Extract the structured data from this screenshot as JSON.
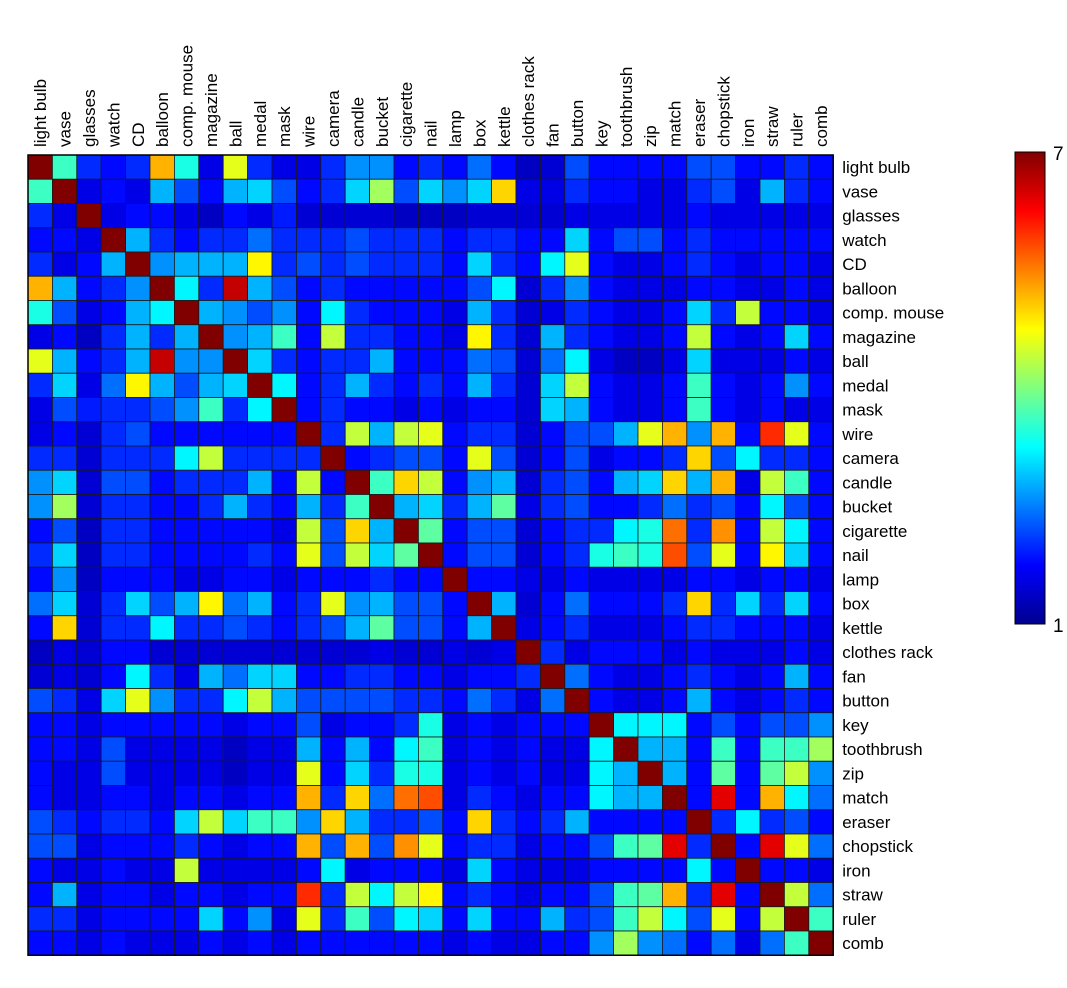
{
  "chart_data": {
    "type": "heatmap",
    "title": "",
    "xlabel": "",
    "ylabel": "",
    "categories": [
      "light bulb",
      "vase",
      "glasses",
      "watch",
      "CD",
      "balloon",
      "comp. mouse",
      "magazine",
      "ball",
      "medal",
      "mask",
      "wire",
      "camera",
      "candle",
      "bucket",
      "cigarette",
      "nail",
      "lamp",
      "box",
      "kettle",
      "clothes rack",
      "fan",
      "button",
      "key",
      "toothbrush",
      "zip",
      "match",
      "eraser",
      "chopstick",
      "iron",
      "straw",
      "ruler",
      "comb"
    ],
    "x_tick_position": "top",
    "y_tick_position": "right",
    "colormap": "jet",
    "colorbar": {
      "min": 1,
      "max": 7,
      "min_label": "1",
      "max_label": "7",
      "placement": "right"
    },
    "matrix": [
      [
        7,
        3.6,
        2,
        1.8,
        2,
        5.2,
        3.4,
        1.6,
        4.6,
        2,
        1.6,
        1.6,
        2,
        2.6,
        2.6,
        1.8,
        2,
        1.8,
        2.4,
        1.8,
        1.4,
        1.5,
        2.2,
        1.8,
        1.8,
        1.8,
        1.8,
        2.2,
        2.2,
        1.8,
        1.8,
        2,
        1.8
      ],
      [
        3.6,
        7,
        1.6,
        1.8,
        1.6,
        2.8,
        2.2,
        1.8,
        2.8,
        3,
        2.2,
        1.8,
        2,
        3,
        4.2,
        2.2,
        3,
        2.6,
        3,
        5,
        1.6,
        1.6,
        2,
        1.8,
        1.8,
        1.6,
        1.6,
        2,
        2.2,
        1.6,
        2.8,
        2,
        1.8
      ],
      [
        2,
        1.6,
        7,
        1.6,
        1.8,
        1.8,
        1.6,
        1.4,
        1.8,
        1.6,
        1.9,
        1.5,
        1.5,
        1.5,
        1.5,
        1.4,
        1.4,
        1.4,
        1.5,
        1.5,
        1.5,
        1.5,
        1.6,
        1.6,
        1.6,
        1.6,
        1.6,
        1.8,
        1.6,
        1.6,
        1.6,
        1.6,
        1.6
      ],
      [
        1.8,
        1.8,
        1.6,
        7,
        2.8,
        2,
        1.8,
        2,
        2,
        2.4,
        2,
        2,
        2,
        2.2,
        2,
        2,
        2,
        1.8,
        2,
        2,
        1.8,
        1.8,
        3,
        1.8,
        2.2,
        2.2,
        1.8,
        2,
        1.8,
        1.8,
        1.8,
        1.8,
        1.8
      ],
      [
        2,
        1.6,
        1.8,
        2.8,
        7,
        2.6,
        2.8,
        2.8,
        2.8,
        4.8,
        2,
        2.2,
        2,
        2.2,
        2,
        2,
        2,
        1.8,
        3,
        2,
        1.8,
        3.2,
        4.6,
        1.8,
        1.6,
        1.6,
        1.8,
        2,
        1.8,
        1.6,
        1.8,
        1.8,
        1.6
      ],
      [
        5.2,
        2.8,
        1.8,
        2,
        2.6,
        7,
        3.2,
        2,
        6.6,
        2.8,
        2.2,
        1.8,
        2,
        1.8,
        1.8,
        1.8,
        1.8,
        1.8,
        2.2,
        3.2,
        1.5,
        2,
        2.6,
        1.8,
        1.6,
        1.6,
        1.6,
        1.8,
        1.8,
        1.6,
        1.6,
        1.8,
        1.6
      ],
      [
        3.4,
        2.2,
        1.6,
        1.8,
        2.8,
        3.2,
        7,
        2.8,
        2.6,
        2.2,
        2.6,
        1.8,
        3.2,
        2,
        1.8,
        1.8,
        1.8,
        1.6,
        2.8,
        2,
        1.5,
        1.6,
        2,
        1.8,
        1.6,
        1.6,
        1.8,
        3,
        2,
        4.4,
        1.8,
        1.8,
        1.6
      ],
      [
        1.6,
        1.8,
        1.4,
        2,
        2.8,
        2,
        2.8,
        7,
        2.6,
        2.8,
        3.6,
        1.8,
        4.4,
        2,
        2,
        1.8,
        1.8,
        1.6,
        4.8,
        2,
        1.5,
        2.8,
        2,
        1.8,
        1.6,
        1.6,
        1.8,
        4.4,
        1.8,
        1.6,
        1.8,
        3,
        1.8
      ],
      [
        4.6,
        2.8,
        1.8,
        2,
        2.8,
        6.6,
        2.6,
        2.6,
        7,
        3,
        2,
        1.8,
        2,
        2,
        2.8,
        1.8,
        1.8,
        1.8,
        2.4,
        2.2,
        1.5,
        2.4,
        3.2,
        1.6,
        1.4,
        1.4,
        1.6,
        3,
        1.6,
        1.6,
        1.6,
        1.8,
        1.6
      ],
      [
        2,
        3,
        1.6,
        2.4,
        4.8,
        2.8,
        2.2,
        2.8,
        3,
        7,
        3.2,
        1.8,
        2,
        2.8,
        2,
        1.8,
        2,
        1.8,
        2.8,
        2,
        1.5,
        3,
        4.4,
        1.8,
        1.6,
        1.6,
        1.8,
        3.6,
        1.8,
        1.6,
        1.8,
        2.6,
        1.8
      ],
      [
        1.6,
        2.2,
        1.9,
        2,
        2,
        2.2,
        2.6,
        3.6,
        2,
        3.2,
        7,
        1.8,
        2,
        1.8,
        1.8,
        1.6,
        1.8,
        1.6,
        1.8,
        1.8,
        1.5,
        3,
        2.8,
        1.8,
        1.6,
        1.6,
        1.8,
        3.6,
        1.8,
        1.6,
        1.8,
        1.6,
        1.6
      ],
      [
        1.6,
        1.8,
        1.5,
        2,
        2.2,
        1.8,
        1.8,
        1.8,
        1.8,
        1.8,
        1.8,
        7,
        2,
        4.4,
        2.8,
        4.4,
        4.6,
        1.8,
        2,
        2,
        1.5,
        1.8,
        2.2,
        2.2,
        2.8,
        4.6,
        5.2,
        2.6,
        5.2,
        1.8,
        6,
        4.6,
        1.8
      ],
      [
        2,
        2,
        1.5,
        2,
        2,
        2,
        3.2,
        4.4,
        2,
        2,
        2,
        2,
        7,
        1.8,
        2,
        2.2,
        2.2,
        1.8,
        4.6,
        2.2,
        1.5,
        1.8,
        2.2,
        1.6,
        1.8,
        1.8,
        2,
        5,
        2.2,
        3.2,
        2,
        2,
        1.8
      ],
      [
        2.6,
        3,
        1.5,
        2.2,
        2.2,
        1.8,
        2,
        2,
        2,
        2.8,
        1.8,
        4.4,
        1.8,
        7,
        3.6,
        5,
        4.4,
        1.8,
        2.6,
        2.8,
        1.5,
        2,
        2.2,
        1.8,
        2.8,
        3,
        5,
        2.8,
        5.2,
        1.6,
        4.4,
        3.6,
        1.8
      ],
      [
        2.6,
        4.2,
        1.5,
        2,
        2,
        1.8,
        1.8,
        2,
        2.8,
        2,
        1.8,
        2.8,
        2,
        3.6,
        7,
        2.8,
        3,
        2,
        2.8,
        3.8,
        1.6,
        2,
        2.2,
        1.8,
        1.8,
        2,
        2.4,
        2,
        2.2,
        1.8,
        3.2,
        2.2,
        1.8
      ],
      [
        1.8,
        2.2,
        1.4,
        2,
        2,
        1.8,
        1.8,
        1.8,
        1.8,
        1.8,
        1.6,
        4.4,
        2.2,
        5,
        2.8,
        7,
        3.8,
        1.8,
        2.2,
        2.2,
        1.5,
        1.8,
        2,
        2,
        3.2,
        3.4,
        5.6,
        2,
        5.4,
        1.8,
        4.4,
        3.2,
        1.8
      ],
      [
        2,
        3,
        1.4,
        2,
        2,
        1.8,
        1.8,
        1.8,
        1.8,
        2,
        1.8,
        4.6,
        2.2,
        4.4,
        3,
        3.8,
        7,
        1.8,
        2.2,
        2.2,
        1.5,
        1.8,
        2,
        3.4,
        3.6,
        3.4,
        5.8,
        2.2,
        4.6,
        1.8,
        4.8,
        3,
        1.8
      ],
      [
        1.8,
        2.6,
        1.4,
        1.8,
        1.8,
        1.8,
        1.6,
        1.6,
        1.8,
        1.8,
        1.6,
        1.8,
        1.8,
        1.8,
        2,
        1.8,
        1.8,
        7,
        1.8,
        1.8,
        1.6,
        1.6,
        1.8,
        1.6,
        1.6,
        1.6,
        1.6,
        1.8,
        1.8,
        1.6,
        1.8,
        1.8,
        1.6
      ],
      [
        2.4,
        3,
        1.5,
        2,
        3,
        2.2,
        2.8,
        4.8,
        2.4,
        2.8,
        1.8,
        2,
        4.6,
        2.6,
        2.8,
        2.2,
        2.2,
        1.8,
        7,
        2.8,
        1.5,
        1.8,
        2.4,
        1.8,
        1.8,
        1.8,
        2,
        5,
        2,
        3,
        2,
        3,
        1.8
      ],
      [
        1.8,
        5,
        1.5,
        2,
        2,
        3.2,
        2,
        2,
        2.2,
        2,
        1.8,
        2,
        2.2,
        2.8,
        3.8,
        2.2,
        2.2,
        1.8,
        2.8,
        7,
        1.6,
        1.8,
        2,
        1.6,
        1.6,
        1.6,
        1.8,
        2,
        2,
        1.8,
        1.8,
        1.8,
        1.6
      ],
      [
        1.4,
        1.6,
        1.5,
        1.8,
        1.8,
        1.5,
        1.5,
        1.5,
        1.5,
        1.5,
        1.5,
        1.5,
        1.5,
        1.5,
        1.6,
        1.5,
        1.5,
        1.6,
        1.5,
        1.6,
        7,
        2,
        1.6,
        1.8,
        1.8,
        1.8,
        1.6,
        1.8,
        1.6,
        1.6,
        1.6,
        1.8,
        1.6
      ],
      [
        1.5,
        1.6,
        1.5,
        1.8,
        3.2,
        2,
        1.6,
        2.8,
        2.4,
        3,
        3,
        1.8,
        1.8,
        2,
        2,
        1.8,
        1.8,
        1.6,
        1.8,
        1.8,
        2,
        7,
        2.4,
        1.8,
        1.6,
        1.6,
        1.8,
        2,
        1.8,
        1.6,
        1.8,
        2.8,
        1.8
      ],
      [
        2.2,
        2,
        1.6,
        3,
        4.6,
        2.6,
        2,
        2,
        3.2,
        4.4,
        2.8,
        2.2,
        2.2,
        2.2,
        2.2,
        2,
        2,
        1.8,
        2.4,
        2,
        1.6,
        2.4,
        7,
        1.8,
        1.6,
        1.6,
        1.8,
        2.8,
        1.8,
        1.6,
        1.8,
        2,
        1.8
      ],
      [
        1.8,
        1.8,
        1.6,
        1.8,
        1.8,
        1.8,
        1.8,
        1.8,
        1.6,
        1.8,
        1.8,
        2.2,
        1.6,
        1.8,
        1.8,
        2,
        3.4,
        1.6,
        1.8,
        1.6,
        1.8,
        1.8,
        1.8,
        7,
        3.2,
        3.2,
        3.2,
        1.8,
        2.2,
        1.8,
        2.2,
        2.2,
        2.6
      ],
      [
        1.8,
        1.8,
        1.6,
        2.2,
        1.6,
        1.6,
        1.6,
        1.6,
        1.4,
        1.6,
        1.6,
        2.8,
        1.8,
        2.8,
        1.8,
        3.2,
        3.6,
        1.6,
        1.8,
        1.6,
        1.8,
        1.6,
        1.6,
        3.2,
        7,
        2.8,
        2.8,
        1.8,
        3.6,
        1.8,
        3.6,
        3.6,
        4.2
      ],
      [
        1.8,
        1.6,
        1.6,
        2.2,
        1.6,
        1.6,
        1.6,
        1.6,
        1.4,
        1.6,
        1.6,
        4.6,
        1.8,
        3,
        2,
        3.4,
        3.4,
        1.6,
        1.8,
        1.6,
        1.8,
        1.6,
        1.6,
        3.2,
        2.8,
        7,
        2.8,
        1.8,
        3.8,
        1.8,
        3.8,
        4.4,
        2.6
      ],
      [
        1.8,
        1.6,
        1.6,
        1.8,
        1.8,
        1.6,
        1.8,
        1.8,
        1.6,
        1.8,
        1.8,
        5.2,
        2,
        5,
        2.4,
        5.6,
        5.8,
        1.6,
        2,
        1.8,
        1.6,
        1.8,
        1.8,
        3.2,
        2.8,
        2.8,
        7,
        1.8,
        6.4,
        1.8,
        5.2,
        3.2,
        2.4
      ],
      [
        2.2,
        2,
        1.8,
        2,
        2,
        1.8,
        3,
        4.4,
        3,
        3.6,
        3.6,
        2.6,
        5,
        2.8,
        2,
        2,
        2.2,
        1.8,
        5,
        2,
        1.8,
        2,
        2.8,
        1.8,
        1.8,
        1.8,
        1.8,
        7,
        2,
        3.2,
        2,
        2.2,
        1.8
      ],
      [
        2.2,
        2.2,
        1.6,
        1.8,
        1.8,
        1.8,
        2,
        1.8,
        1.6,
        1.8,
        1.8,
        5.2,
        2.2,
        5.2,
        2.2,
        5.4,
        4.6,
        1.8,
        2,
        2,
        1.6,
        1.8,
        1.8,
        2.2,
        3.6,
        3.8,
        6.4,
        2,
        7,
        1.8,
        6.4,
        4.6,
        2.4
      ],
      [
        1.8,
        1.6,
        1.6,
        1.8,
        1.6,
        1.6,
        4.4,
        1.6,
        1.6,
        1.6,
        1.6,
        1.8,
        3.2,
        1.6,
        1.8,
        1.8,
        1.8,
        1.6,
        3,
        1.8,
        1.6,
        1.6,
        1.6,
        1.8,
        1.8,
        1.8,
        1.8,
        3.2,
        1.8,
        7,
        1.8,
        1.8,
        1.6
      ],
      [
        1.8,
        2.8,
        1.6,
        1.8,
        1.8,
        1.6,
        1.8,
        1.8,
        1.6,
        1.8,
        1.8,
        6,
        2,
        4.4,
        3.2,
        4.4,
        4.8,
        1.8,
        2,
        1.8,
        1.6,
        1.8,
        1.8,
        2.2,
        3.6,
        3.8,
        5.2,
        2,
        6.4,
        1.8,
        7,
        4.4,
        2.4
      ],
      [
        2,
        2,
        1.6,
        1.8,
        1.8,
        1.8,
        1.8,
        3,
        1.8,
        2.6,
        1.6,
        4.6,
        2,
        3.6,
        2.2,
        3.2,
        3,
        1.8,
        3,
        1.8,
        1.8,
        2.8,
        2,
        2.2,
        3.6,
        4.4,
        3.2,
        2.2,
        4.6,
        1.8,
        4.4,
        7,
        3.6
      ],
      [
        1.8,
        1.8,
        1.6,
        1.8,
        1.6,
        1.6,
        1.6,
        1.8,
        1.6,
        1.8,
        1.6,
        1.8,
        1.8,
        1.8,
        1.8,
        1.8,
        1.8,
        1.6,
        1.8,
        1.6,
        1.6,
        1.8,
        1.8,
        2.6,
        4.2,
        2.6,
        2.4,
        1.8,
        2.4,
        1.6,
        2.4,
        3.6,
        7
      ]
    ]
  }
}
